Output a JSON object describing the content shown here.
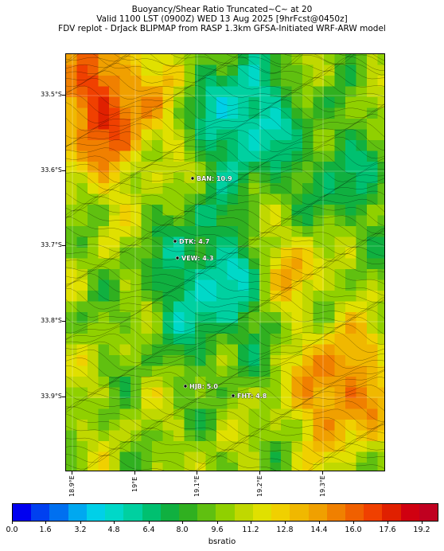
{
  "title": {
    "line1": "Buoyancy/Shear Ratio Truncated~C~    at 20",
    "line2": "Valid 1100 LST (0900Z) WED 13 Aug 2025 [9hrFcst@0450z]",
    "line3": "FDV replot - DrJack BLIPMAP from RASP 1.3km GFSA-Initiated WRF-ARW model"
  },
  "lat_ticks": [
    "33.5°S",
    "33.6°S",
    "33.7°S",
    "33.8°S",
    "33.9°S"
  ],
  "lon_ticks": [
    "18.9°E",
    "19°E",
    "19.1°E",
    "19.2°E",
    "19.3°E"
  ],
  "stations": [
    {
      "code": "BAN",
      "value": "10.9",
      "label": "BAN: 10.9"
    },
    {
      "code": "DTK",
      "value": "4.7",
      "label": "DTK: 4.7"
    },
    {
      "code": "VEW",
      "value": "4.3",
      "label": "VEW: 4.3"
    },
    {
      "code": "HJB",
      "value": "5.0",
      "label": "HJB: 5.0"
    },
    {
      "code": "FHT",
      "value": "4.8",
      "label": "FHT: 4.8"
    }
  ],
  "colorbar": {
    "tick_labels": [
      "0.0",
      "1.6",
      "3.2",
      "4.8",
      "6.4",
      "8.0",
      "9.6",
      "11.2",
      "12.8",
      "14.4",
      "16.0",
      "17.6",
      "19.2"
    ],
    "unit": "bsratio",
    "colors": [
      "#0000f0",
      "#0040f0",
      "#0070f0",
      "#00a8f0",
      "#00d0e8",
      "#00d8c8",
      "#00d0a0",
      "#00c070",
      "#10b040",
      "#30b020",
      "#60c010",
      "#90d000",
      "#c0d800",
      "#e0e000",
      "#f0d000",
      "#f0b800",
      "#f0a000",
      "#f08000",
      "#f06000",
      "#f04000",
      "#e02000",
      "#d00010",
      "#c00020"
    ]
  }
}
